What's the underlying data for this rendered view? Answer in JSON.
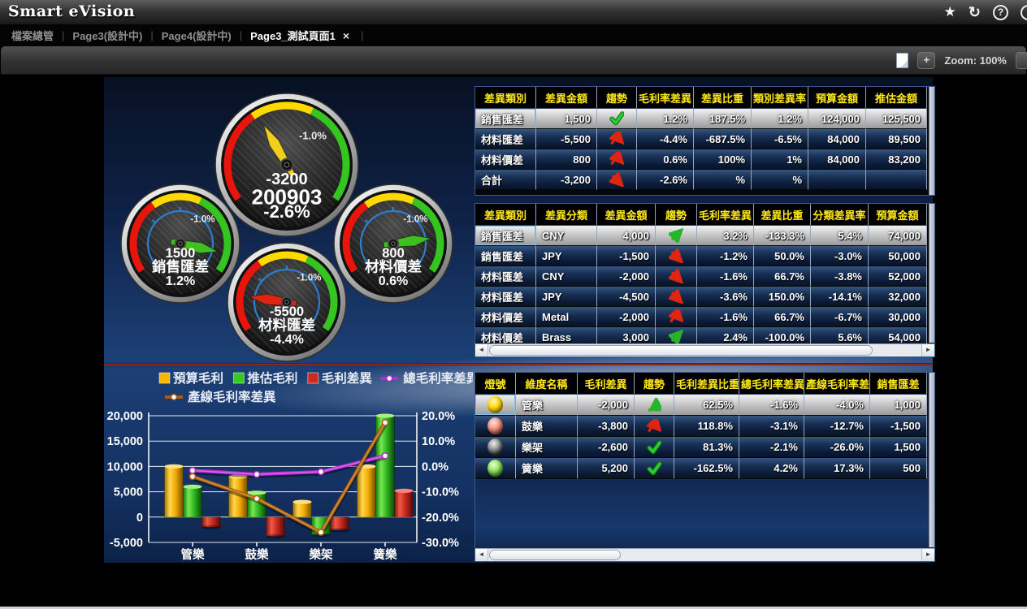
{
  "header": {
    "title": "Smart eVision"
  },
  "icons": {
    "star": "★",
    "refresh": "↻",
    "help": "?",
    "separator": "|",
    "close": "×",
    "plus": "+",
    "scroll_left": "◄",
    "scroll_right": "►"
  },
  "tabs": [
    {
      "label": "檔案總管",
      "active": false,
      "closable": false
    },
    {
      "label": "Page3(設計中)",
      "active": false,
      "closable": false
    },
    {
      "label": "Page4(設計中)",
      "active": false,
      "closable": false
    },
    {
      "label": "Page3_測試頁面1",
      "active": true,
      "closable": true
    }
  ],
  "toolbar": {
    "zoom_label": "Zoom: 100%"
  },
  "gauges": [
    {
      "value": "-3200",
      "label": "200903",
      "pct": "-2.6%",
      "marker": "-1.0%",
      "needle_angle": 120,
      "needle_color": "#f2cf1a",
      "size": "large"
    },
    {
      "value": "1500",
      "label": "銷售匯差",
      "pct": "1.2%",
      "marker": "-1.0%",
      "needle_angle": -12,
      "needle_color": "#3fc01e",
      "size": "small"
    },
    {
      "value": "800",
      "label": "材料價差",
      "pct": "0.6%",
      "marker": "-1.0%",
      "needle_angle": 8,
      "needle_color": "#3fc01e",
      "size": "small"
    },
    {
      "value": "-5500",
      "label": "材料匯差",
      "pct": "-4.4%",
      "marker": "-1.0%",
      "needle_angle": 172,
      "needle_color": "#e02412",
      "size": "small"
    }
  ],
  "tables": {
    "t1": {
      "columns": [
        "差異類別",
        "差異金額",
        "趨勢",
        "毛利率差異",
        "差異比重",
        "類別差異率",
        "預算金額",
        "推估金額"
      ],
      "widths": [
        75,
        75,
        49,
        70,
        71,
        70,
        71,
        75
      ],
      "aligns": [
        "left",
        "right",
        "center",
        "right",
        "right",
        "right",
        "right",
        "right"
      ],
      "rows": [
        {
          "selected": true,
          "cells": [
            "銷售匯差",
            "1,500",
            {
              "trend": "check-green"
            },
            "1.2%",
            "187.5%",
            "1.2%",
            "124,000",
            "125,500"
          ]
        },
        {
          "selected": false,
          "cells": [
            "材料匯差",
            "-5,500",
            {
              "trend": "peak-red"
            },
            "-4.4%",
            "-687.5%",
            "-6.5%",
            "84,000",
            "89,500"
          ]
        },
        {
          "selected": false,
          "cells": [
            "材料價差",
            "800",
            {
              "trend": "peak-red"
            },
            "0.6%",
            "100%",
            "1%",
            "84,000",
            "83,200"
          ]
        },
        {
          "selected": false,
          "cells": [
            "合計",
            "-3,200",
            {
              "trend": "down-red"
            },
            "-2.6%",
            "%",
            "%",
            "",
            ""
          ]
        }
      ]
    },
    "t2": {
      "columns": [
        "差異類別",
        "差異分類",
        "差異金額",
        "趨勢",
        "毛利率差異",
        "差異比重",
        "分類差異率",
        "預算金額"
      ],
      "widths": [
        75,
        75,
        72,
        51,
        70,
        70,
        71,
        72
      ],
      "aligns": [
        "left",
        "left",
        "right",
        "center",
        "right",
        "right",
        "right",
        "right"
      ],
      "rows": [
        {
          "selected": true,
          "cells": [
            "銷售匯差",
            "CNY",
            "4,000",
            {
              "trend": "up-green"
            },
            "3.2%",
            "-133.3%",
            "5.4%",
            "74,000"
          ]
        },
        {
          "selected": false,
          "cells": [
            "銷售匯差",
            "JPY",
            "-1,500",
            {
              "trend": "down-red"
            },
            "-1.2%",
            "50.0%",
            "-3.0%",
            "50,000"
          ]
        },
        {
          "selected": false,
          "cells": [
            "材料匯差",
            "CNY",
            "-2,000",
            {
              "trend": "down-red"
            },
            "-1.6%",
            "66.7%",
            "-3.8%",
            "52,000"
          ]
        },
        {
          "selected": false,
          "cells": [
            "材料匯差",
            "JPY",
            "-4,500",
            {
              "trend": "down-red"
            },
            "-3.6%",
            "150.0%",
            "-14.1%",
            "32,000"
          ]
        },
        {
          "selected": false,
          "cells": [
            "材料價差",
            "Metal",
            "-2,000",
            {
              "trend": "peak-red"
            },
            "-1.6%",
            "66.7%",
            "-6.7%",
            "30,000"
          ]
        },
        {
          "selected": false,
          "cells": [
            "材料價差",
            "Brass",
            "3,000",
            {
              "trend": "up-green"
            },
            "2.4%",
            "-100.0%",
            "5.6%",
            "54,000"
          ]
        }
      ]
    },
    "t3": {
      "columns": [
        "燈號",
        "維度名稱",
        "毛利差異",
        "趨勢",
        "毛利差異比重",
        "總毛利率差異",
        "產線毛利率差!",
        "銷售匯差"
      ],
      "widths": [
        50,
        76,
        70,
        49,
        80,
        80,
        81,
        70
      ],
      "aligns": [
        "center",
        "left",
        "right",
        "center",
        "right",
        "right",
        "right",
        "right"
      ],
      "rows": [
        {
          "selected": true,
          "cells": [
            {
              "lamp": "yellow"
            },
            "管樂",
            "-2,000",
            {
              "trend": "turn-green"
            },
            "62.5%",
            "-1.6%",
            "-4.0%",
            "1,000"
          ]
        },
        {
          "selected": false,
          "cells": [
            {
              "lamp": "red"
            },
            "鼓樂",
            "-3,800",
            {
              "trend": "peak-red"
            },
            "118.8%",
            "-3.1%",
            "-12.7%",
            "-1,500"
          ]
        },
        {
          "selected": false,
          "cells": [
            {
              "lamp": "black"
            },
            "樂架",
            "-2,600",
            {
              "trend": "check-green"
            },
            "81.3%",
            "-2.1%",
            "-26.0%",
            "1,500"
          ]
        },
        {
          "selected": false,
          "cells": [
            {
              "lamp": "green"
            },
            "簧樂",
            "5,200",
            {
              "trend": "check-green"
            },
            "-162.5%",
            "4.2%",
            "17.3%",
            "500"
          ]
        }
      ]
    }
  },
  "chart_data": {
    "type": "combo",
    "categories": [
      "管樂",
      "鼓樂",
      "樂架",
      "簧樂"
    ],
    "series": [
      {
        "name": "預算毛利",
        "type": "bar",
        "axis": "left",
        "color": "#f5b800",
        "values": [
          10000,
          8000,
          3000,
          10000
        ]
      },
      {
        "name": "推估毛利",
        "type": "bar",
        "axis": "left",
        "color": "#33cc22",
        "values": [
          6000,
          4800,
          -3500,
          20000
        ]
      },
      {
        "name": "毛利差異",
        "type": "bar",
        "axis": "left",
        "color": "#cc2a1e",
        "values": [
          -2000,
          -3800,
          -2600,
          5200
        ]
      },
      {
        "name": "總毛利率差異",
        "type": "line",
        "axis": "right",
        "color": "#b42bd0",
        "color2": "#e06cf0",
        "values": [
          -1.6,
          -3.1,
          -2.1,
          4.2
        ]
      },
      {
        "name": "產線毛利率差異",
        "type": "line",
        "axis": "right",
        "color": "#a85d17",
        "color2": "#d99336",
        "values": [
          -4.0,
          -12.7,
          -26.0,
          17.3
        ]
      }
    ],
    "left_axis": {
      "min": -5000,
      "max": 20000,
      "step": 5000,
      "ticks": [
        [
          -5000,
          "-5,000"
        ],
        [
          0,
          "0"
        ],
        [
          5000,
          "5,000"
        ],
        [
          10000,
          "10,000"
        ],
        [
          15000,
          "15,000"
        ],
        [
          20000,
          "20,000"
        ]
      ]
    },
    "right_axis": {
      "min": -30,
      "max": 20,
      "step": 10,
      "ticks": [
        [
          -30,
          "-30.0%"
        ],
        [
          -20,
          "-20.0%"
        ],
        [
          -10,
          "-10.0%"
        ],
        [
          0,
          "0.0%"
        ],
        [
          10,
          "10.0%"
        ],
        [
          20,
          "20.0%"
        ]
      ]
    },
    "grid": true,
    "legend_position": "top"
  },
  "colors": {
    "header_yellow": "#ffe81a",
    "trend_red": "#e02412",
    "trend_green": "#27b32a",
    "gauge_red": "#e8150d",
    "gauge_yellow": "#ffd900",
    "gauge_green": "#35c520",
    "redline": "#a83226"
  }
}
